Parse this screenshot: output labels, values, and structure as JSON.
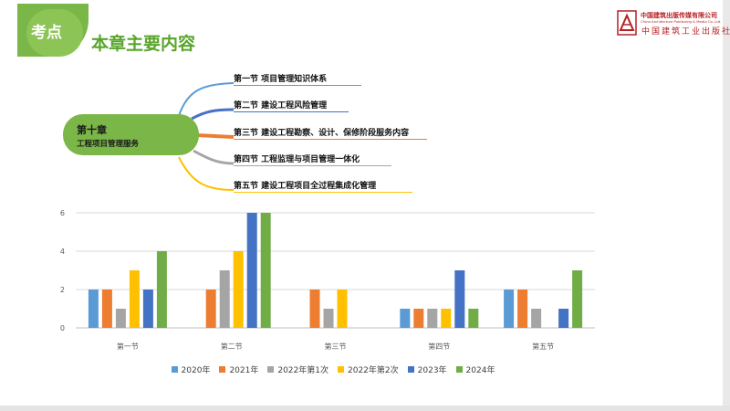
{
  "header": {
    "badge_label": "考点",
    "title": "本章主要内容",
    "publisher_name": "中国建筑出版传媒有限公司",
    "publisher_name_en": "China Architecture Publishing & Media Co.,Ltd.",
    "publisher_name2": "中国建筑工业出版社"
  },
  "mindmap": {
    "chapter_title": "第十章",
    "chapter_subtitle": "工程项目管理服务",
    "branches": [
      {
        "label": "第一节 项目管理知识体系",
        "color": "#5b9bd5"
      },
      {
        "label": "第二节 建设工程风险管理",
        "color": "#4472c4"
      },
      {
        "label": "第三节 建设工程勘察、设计、保修阶段服务内容",
        "color": "#ed7d31"
      },
      {
        "label": "第四节 工程监理与项目管理一体化",
        "color": "#a5a5a5"
      },
      {
        "label": "第五节 建设工程项目全过程集成化管理",
        "color": "#ffc000"
      }
    ]
  },
  "chart_data": {
    "type": "bar",
    "categories": [
      "第一节",
      "第二节",
      "第三节",
      "第四节",
      "第五节"
    ],
    "ylim": [
      0,
      6
    ],
    "yticks": [
      0,
      2,
      4,
      6
    ],
    "grid": true,
    "legend_position": "bottom",
    "series": [
      {
        "name": "2020年",
        "color": "#5b9bd5",
        "values": [
          2,
          0,
          0,
          1,
          2
        ]
      },
      {
        "name": "2021年",
        "color": "#ed7d31",
        "values": [
          2,
          2,
          2,
          1,
          2
        ]
      },
      {
        "name": "2022年第1次",
        "color": "#a5a5a5",
        "values": [
          1,
          3,
          1,
          1,
          1
        ]
      },
      {
        "name": "2022年第2次",
        "color": "#ffc000",
        "values": [
          3,
          4,
          2,
          1,
          0
        ]
      },
      {
        "name": "2023年",
        "color": "#4472c4",
        "values": [
          2,
          6,
          0,
          3,
          1
        ]
      },
      {
        "name": "2024年",
        "color": "#70ad47",
        "values": [
          4,
          6,
          0,
          1,
          3
        ]
      }
    ]
  }
}
